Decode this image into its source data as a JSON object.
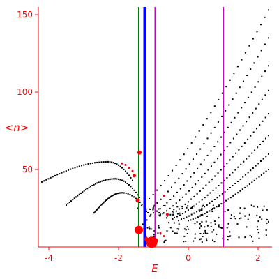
{
  "chart_data": {
    "type": "scatter",
    "xlabel": "E",
    "ylabel": "<n>",
    "xlim": [
      -4.3,
      2.4
    ],
    "ylim": [
      0,
      155
    ],
    "xticks": [
      -4,
      -2,
      0,
      2
    ],
    "yticks": [
      50,
      100,
      150
    ],
    "grid": false,
    "colors": {
      "axis": "#ff0000",
      "points": "#000000",
      "markers": "#ff0000",
      "green_line": "#008000",
      "blue_line": "#0000ff",
      "magenta_line": "#cc00cc"
    },
    "vertical_lines": [
      {
        "x": -1.42,
        "color": "#008000"
      },
      {
        "x": -1.25,
        "color": "#0000ff"
      },
      {
        "x": -0.95,
        "color": "#cc00cc"
      },
      {
        "x": 1.0,
        "color": "#cc00cc"
      }
    ],
    "bands": [
      {
        "from": [
          -4.2,
          42
        ],
        "to": [
          -2.3,
          55
        ],
        "back": [
          -1.6,
          43
        ]
      },
      {
        "from": [
          -3.5,
          27
        ],
        "to": [
          -2.1,
          44
        ],
        "back": [
          -1.4,
          32
        ]
      },
      {
        "from": [
          -2.7,
          22
        ],
        "to": [
          -1.9,
          35
        ],
        "back": [
          -1.1,
          20
        ]
      }
    ],
    "curves": [
      {
        "from": [
          -1.45,
          25
        ],
        "to": [
          2.3,
          153
        ]
      },
      {
        "from": [
          -1.2,
          23
        ],
        "to": [
          2.3,
          135
        ]
      },
      {
        "from": [
          -1.0,
          22
        ],
        "to": [
          2.3,
          117
        ]
      },
      {
        "from": [
          -0.8,
          21
        ],
        "to": [
          2.3,
          101
        ]
      },
      {
        "from": [
          -0.6,
          20
        ],
        "to": [
          2.3,
          86
        ]
      },
      {
        "from": [
          -0.4,
          19
        ],
        "to": [
          2.3,
          72
        ]
      },
      {
        "from": [
          -0.2,
          18
        ],
        "to": [
          2.3,
          60
        ]
      },
      {
        "from": [
          0.0,
          17
        ],
        "to": [
          2.3,
          50
        ]
      }
    ],
    "markers": [
      {
        "x": -1.4,
        "y": 61,
        "r": 3
      },
      {
        "x": -1.9,
        "y": 54,
        "r": 1.5
      },
      {
        "x": -1.8,
        "y": 53,
        "r": 1.5
      },
      {
        "x": -1.7,
        "y": 51,
        "r": 1.5
      },
      {
        "x": -1.6,
        "y": 49,
        "r": 1.5
      },
      {
        "x": -1.55,
        "y": 46,
        "r": 2.5
      },
      {
        "x": -1.45,
        "y": 30,
        "r": 3
      },
      {
        "x": -1.42,
        "y": 11,
        "r": 6
      },
      {
        "x": -1.2,
        "y": 5,
        "r": 3
      },
      {
        "x": -1.05,
        "y": 3,
        "r": 8
      },
      {
        "x": -0.95,
        "y": 4,
        "r": 4
      },
      {
        "x": -0.6,
        "y": 21,
        "r": 2
      },
      {
        "x": -0.8,
        "y": 9,
        "r": 1.5
      },
      {
        "x": -0.7,
        "y": 7,
        "r": 1.5
      },
      {
        "x": -0.7,
        "y": 33,
        "r": 1.5
      }
    ]
  }
}
